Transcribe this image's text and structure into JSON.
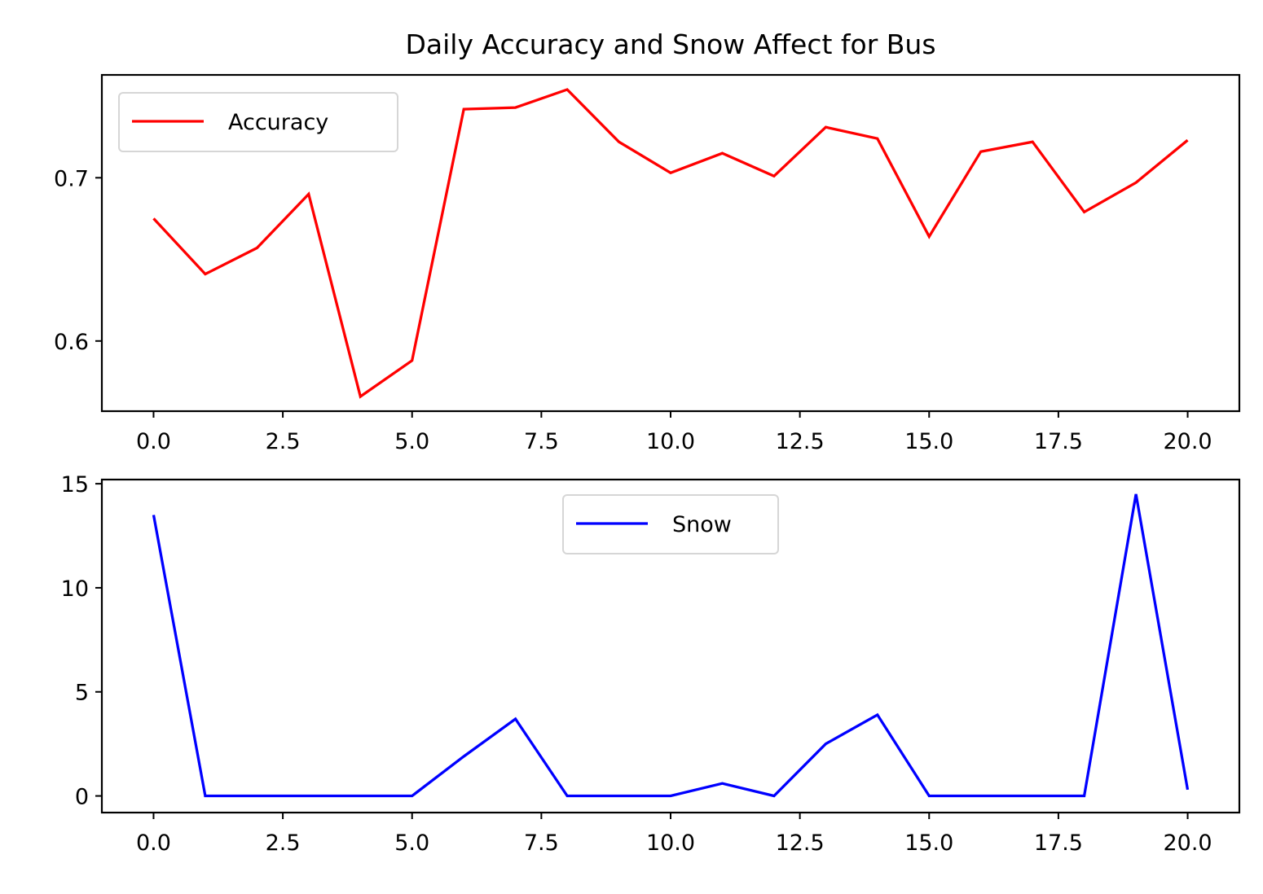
{
  "title": "Daily Accuracy and Snow Affect for Bus",
  "chart_data": [
    {
      "type": "line",
      "x": [
        0,
        1,
        2,
        3,
        4,
        5,
        6,
        7,
        8,
        9,
        10,
        11,
        12,
        13,
        14,
        15,
        16,
        17,
        18,
        19,
        20
      ],
      "series": [
        {
          "name": "Accuracy",
          "color": "#ff0000",
          "values": [
            0.675,
            0.641,
            0.657,
            0.69,
            0.566,
            0.588,
            0.742,
            0.743,
            0.754,
            0.722,
            0.703,
            0.715,
            0.701,
            0.731,
            0.724,
            0.664,
            0.716,
            0.722,
            0.679,
            0.697,
            0.723
          ]
        }
      ],
      "xlim": [
        -1.0,
        21.0
      ],
      "ylim": [
        0.557,
        0.763
      ],
      "xticks": [
        0.0,
        2.5,
        5.0,
        7.5,
        10.0,
        12.5,
        15.0,
        17.5,
        20.0
      ],
      "xtick_labels": [
        "0.0",
        "2.5",
        "5.0",
        "7.5",
        "10.0",
        "12.5",
        "15.0",
        "17.5",
        "20.0"
      ],
      "yticks": [
        0.6,
        0.7
      ],
      "ytick_labels": [
        "0.6",
        "0.7"
      ],
      "legend": "upper left",
      "grid": false
    },
    {
      "type": "line",
      "x": [
        0,
        1,
        2,
        3,
        4,
        5,
        6,
        7,
        8,
        9,
        10,
        11,
        12,
        13,
        14,
        15,
        16,
        17,
        18,
        19,
        20
      ],
      "series": [
        {
          "name": "Snow",
          "color": "#0000ff",
          "values": [
            13.5,
            0,
            0,
            0,
            0,
            0,
            1.9,
            3.7,
            0,
            0,
            0,
            0.6,
            0,
            2.5,
            3.9,
            0,
            0,
            0,
            0,
            14.5,
            0.3
          ]
        }
      ],
      "xlim": [
        -1.0,
        21.0
      ],
      "ylim": [
        -0.8,
        15.2
      ],
      "xticks": [
        0.0,
        2.5,
        5.0,
        7.5,
        10.0,
        12.5,
        15.0,
        17.5,
        20.0
      ],
      "xtick_labels": [
        "0.0",
        "2.5",
        "5.0",
        "7.5",
        "10.0",
        "12.5",
        "15.0",
        "17.5",
        "20.0"
      ],
      "yticks": [
        0,
        5,
        10,
        15
      ],
      "ytick_labels": [
        "0",
        "5",
        "10",
        "15"
      ],
      "legend": "upper center",
      "grid": false
    }
  ]
}
